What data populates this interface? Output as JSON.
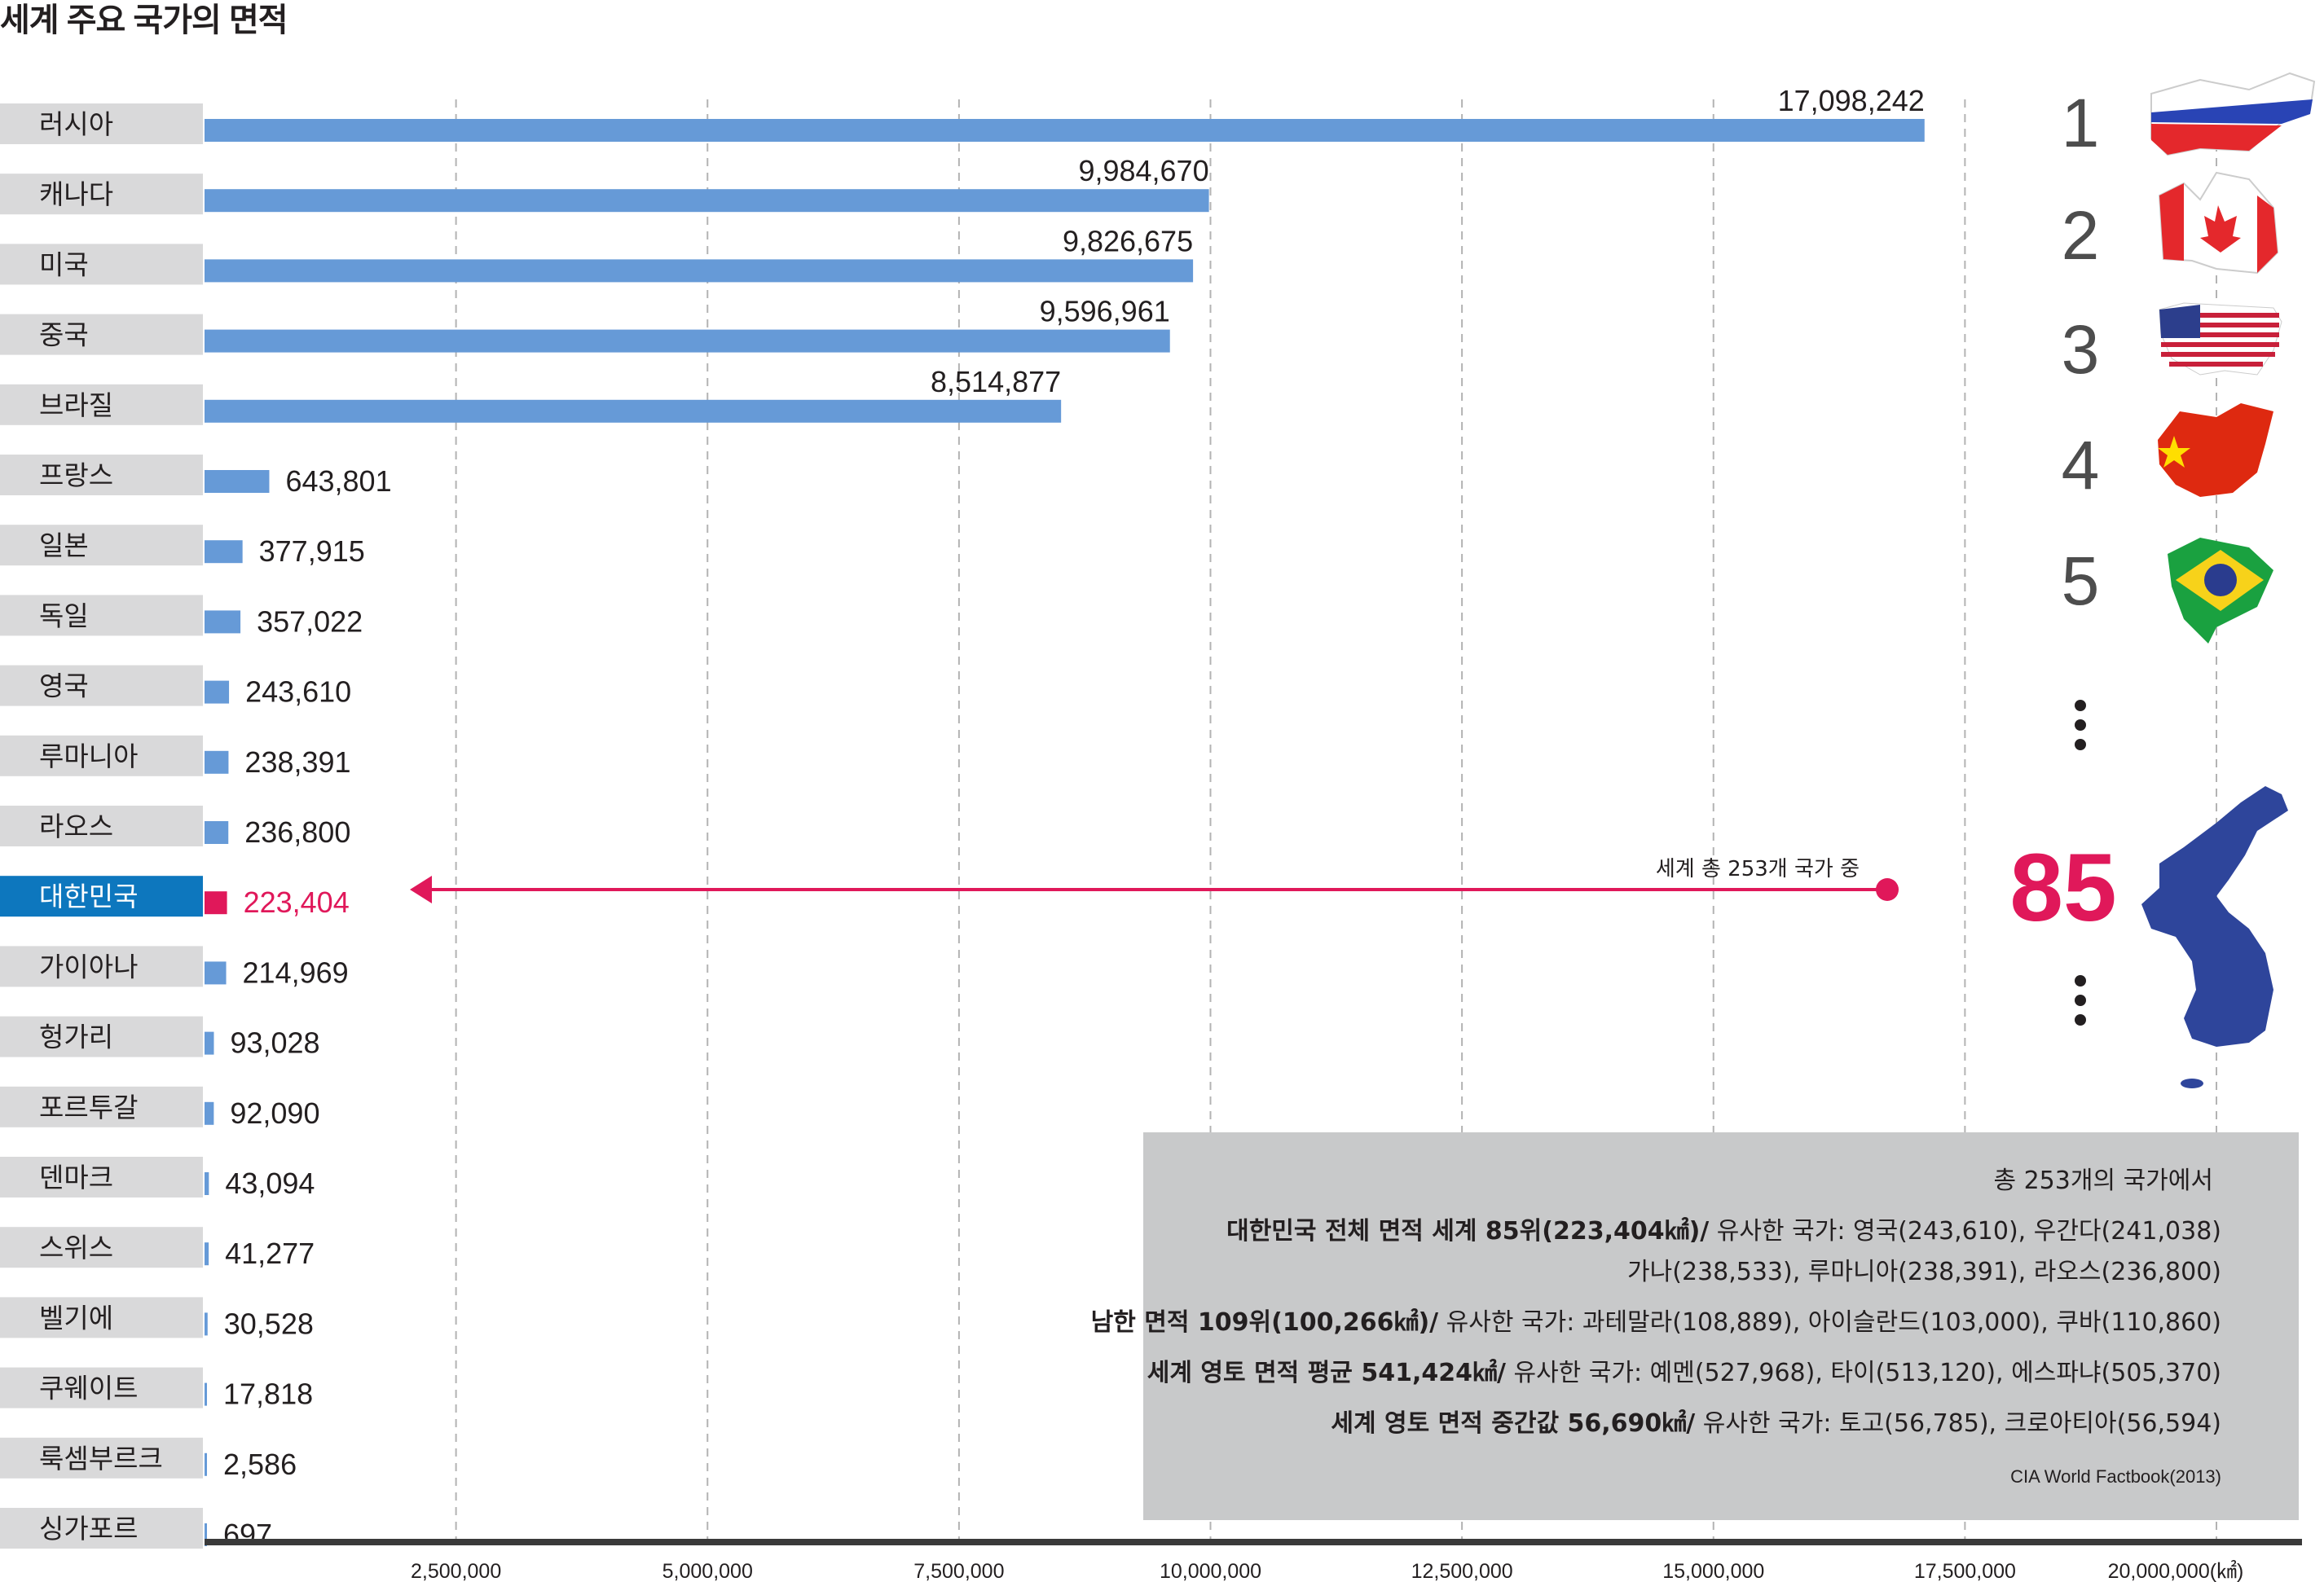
{
  "title": "세계 주요 국가의 면적",
  "chart_data": {
    "type": "bar",
    "orientation": "horizontal",
    "categories": [
      "러시아",
      "캐나다",
      "미국",
      "중국",
      "브라질",
      "프랑스",
      "일본",
      "독일",
      "영국",
      "루마니아",
      "라오스",
      "대한민국",
      "가이아나",
      "헝가리",
      "포르투갈",
      "덴마크",
      "스위스",
      "벨기에",
      "쿠웨이트",
      "룩셈부르크",
      "싱가포르"
    ],
    "values": [
      17098242,
      9984670,
      9826675,
      9596961,
      8514877,
      643801,
      377915,
      357022,
      243610,
      238391,
      236800,
      223404,
      214969,
      93028,
      92090,
      43094,
      41277,
      30528,
      17818,
      2586,
      697
    ],
    "value_labels": [
      "17,098,242",
      "9,984,670",
      "9,826,675",
      "9,596,961",
      "8,514,877",
      "643,801",
      "377,915",
      "357,022",
      "243,610",
      "238,391",
      "236,800",
      "223,404",
      "214,969",
      "93,028",
      "92,090",
      "43,094",
      "41,277",
      "30,528",
      "17,818",
      "2,586",
      "697"
    ],
    "highlight": "대한민국",
    "xlim": [
      0,
      20000000
    ],
    "x_ticks": [
      2500000,
      5000000,
      7500000,
      10000000,
      12500000,
      15000000,
      17500000,
      20000000
    ],
    "x_tick_labels": [
      "2,500,000",
      "5,000,000",
      "7,500,000",
      "10,000,000",
      "12,500,000",
      "15,000,000",
      "17,500,000",
      "20,000,000(㎢)"
    ],
    "grid": "vertical dashed",
    "colors": {
      "bar": "#669ad7",
      "highlight": "#e0185a",
      "highlight_label_bg": "#0d77be",
      "label_bg": "#d9d9da"
    }
  },
  "ranks": [
    "1",
    "2",
    "3",
    "4",
    "5"
  ],
  "highlight_rank": "85",
  "arrow_label": "세계 총 253개 국가 중",
  "note": {
    "header": "총 253개의 국가에서",
    "l1_bold": "대한민국 전체 면적 세계 85위(223,404㎢)/",
    "l1_rest": " 유사한 국가: 영국(243,610), 우간다(241,038)",
    "l2": "가나(238,533), 루마니아(238,391), 라오스(236,800)",
    "l3_bold": "남한 면적 109위(100,266㎢)/",
    "l3_rest": " 유사한 국가: 과테말라(108,889), 아이슬란드(103,000), 쿠바(110,860)",
    "l4_bold": "세계 영토 면적 평균 541,424㎢/",
    "l4_rest": " 유사한 국가: 예멘(527,968), 타이(513,120), 에스파냐(505,370)",
    "l5_bold": "세계 영토 면적 중간값 56,690㎢/",
    "l5_rest": " 유사한 국가: 토고(56,785), 크로아티아(56,594)",
    "source": "CIA World Factbook(2013)"
  }
}
